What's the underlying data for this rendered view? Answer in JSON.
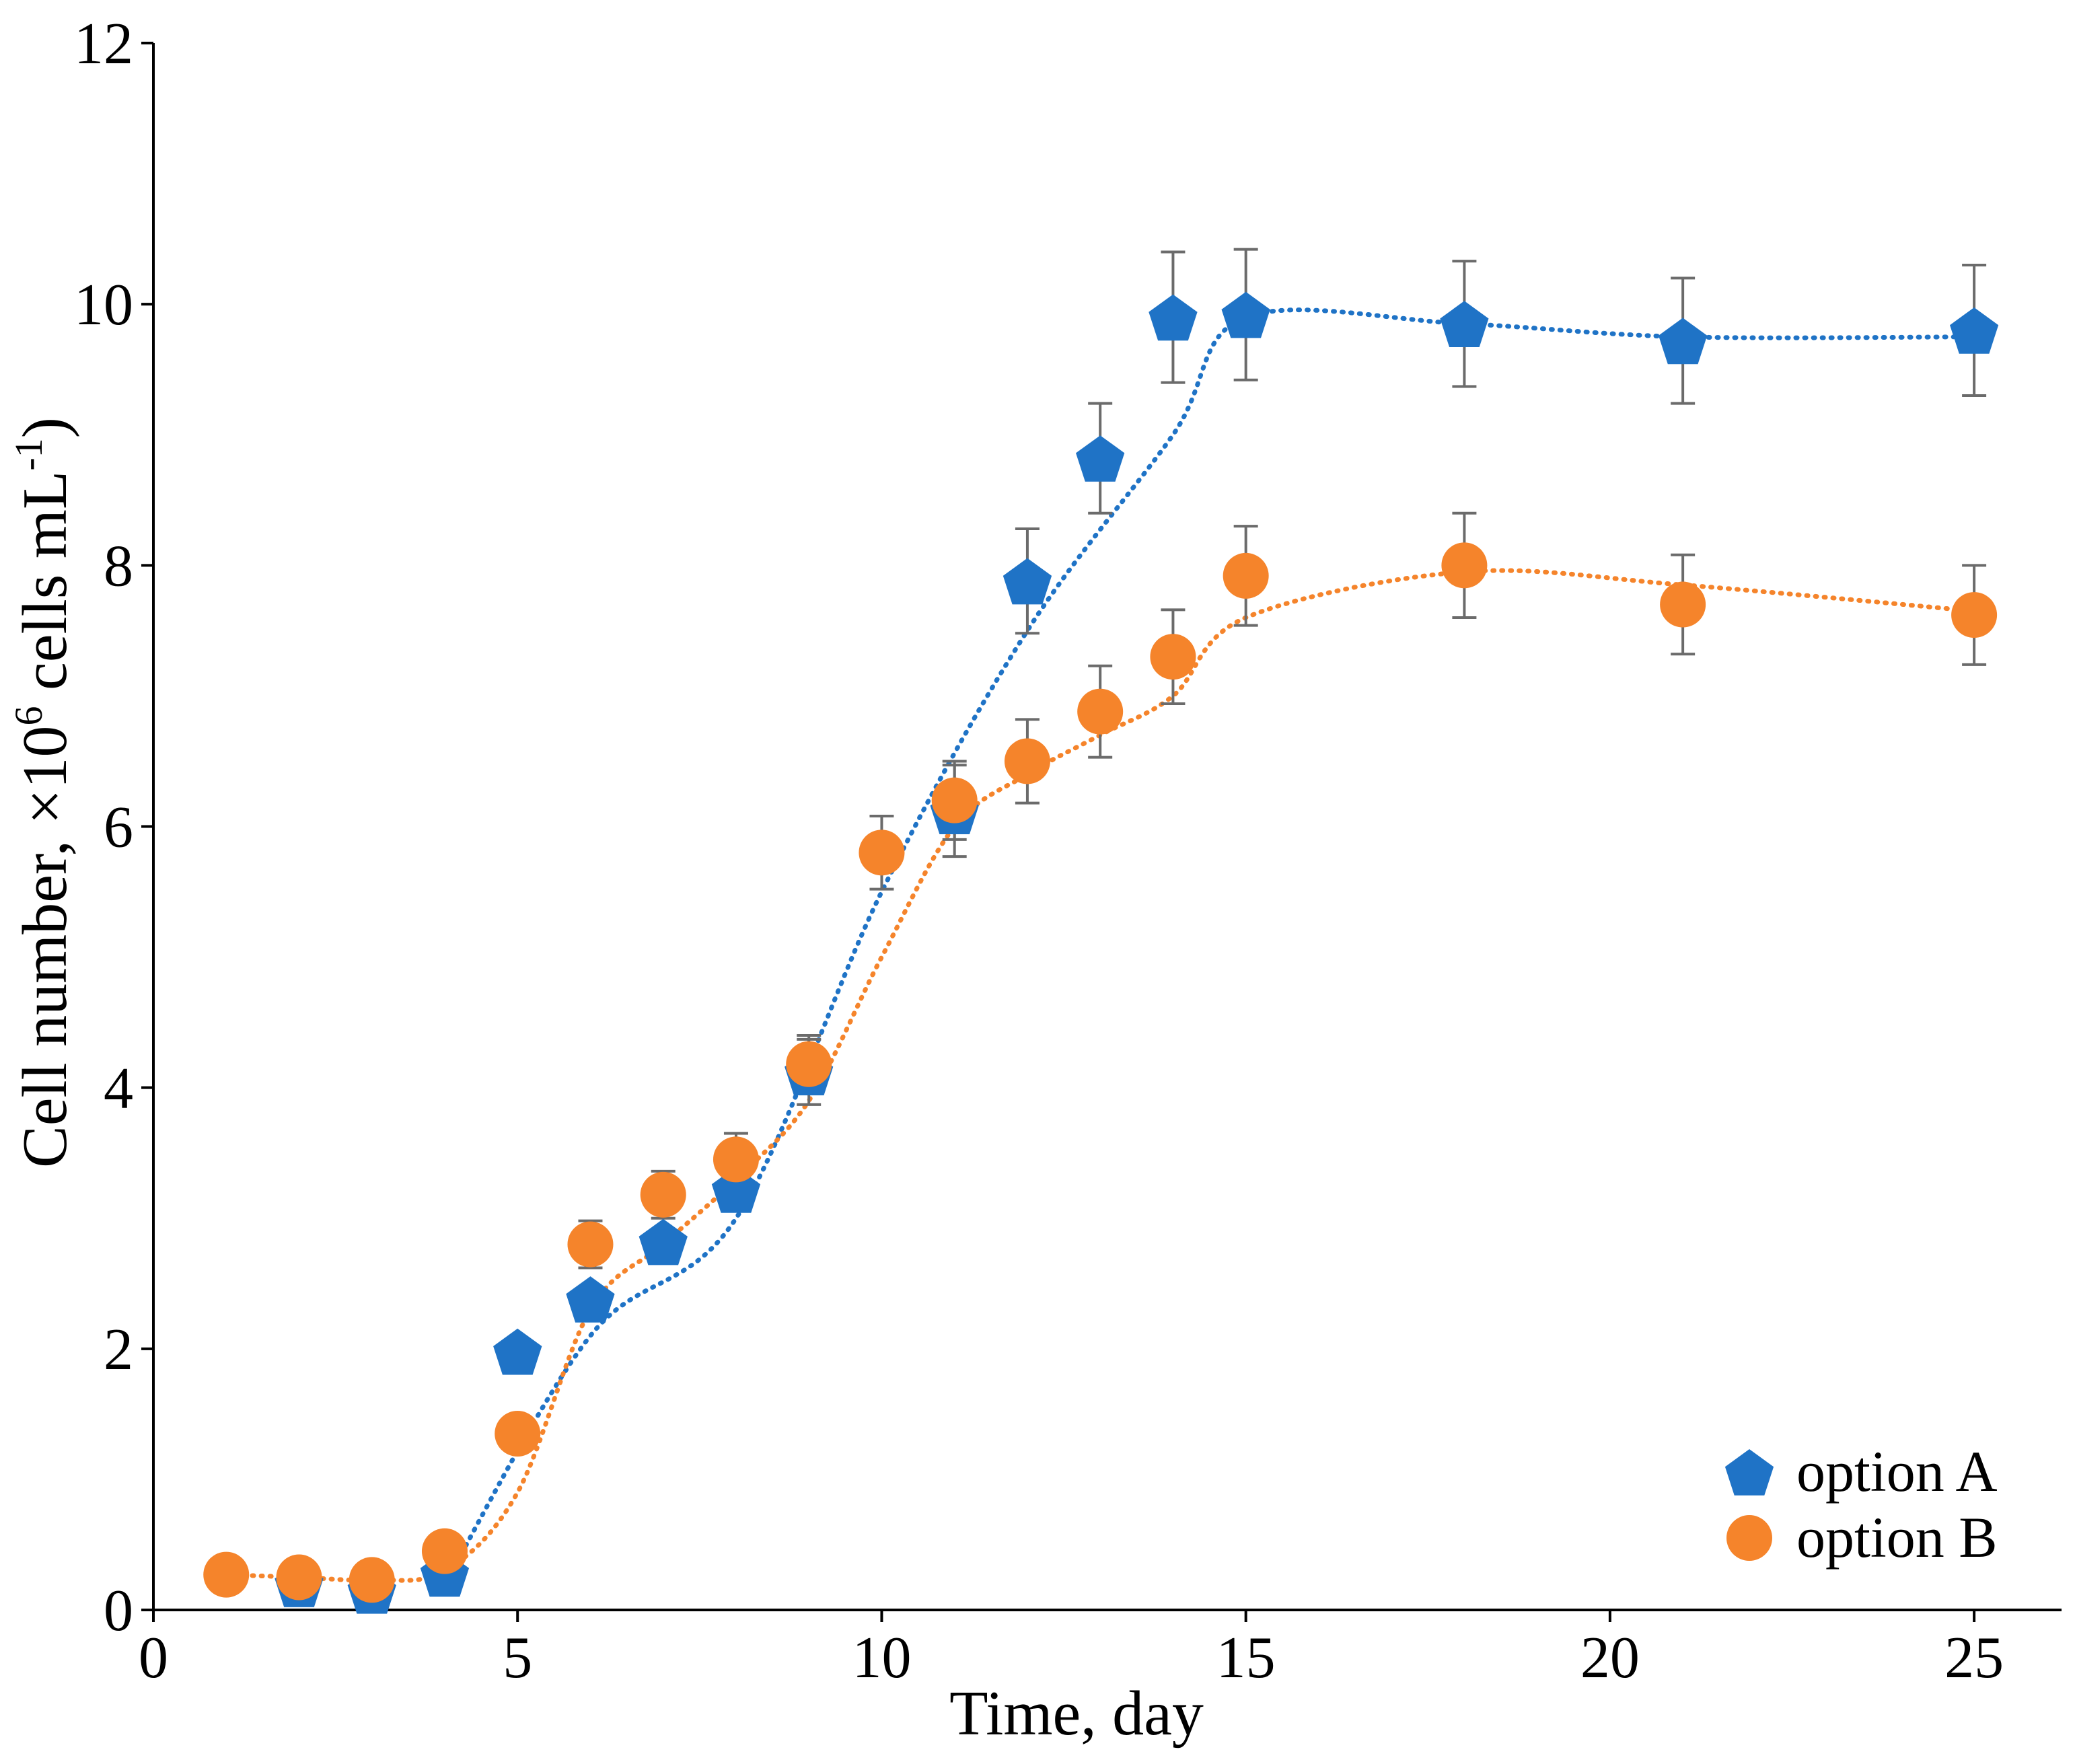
{
  "chart_data": {
    "type": "scatter",
    "title": "",
    "xlabel": "Time, day",
    "ylabel": {
      "prefix": "Cell number, ×10",
      "exp1": "6",
      "middle": " cells mL",
      "exp2": "-1",
      "suffix": ")"
    },
    "xlim": [
      0,
      26.2
    ],
    "ylim": [
      0,
      12
    ],
    "xticks": [
      0,
      5,
      10,
      15,
      20,
      25
    ],
    "yticks": [
      0,
      2,
      4,
      6,
      8,
      10,
      12
    ],
    "legend_position": "bottom-right",
    "series": [
      {
        "name": "option A",
        "marker": "pentagon",
        "color": "#1f73c6",
        "x": [
          2,
          3,
          4,
          5,
          6,
          7,
          8,
          9,
          11,
          12,
          13,
          14,
          15,
          18,
          21,
          25
        ],
        "y": [
          0.2,
          0.15,
          0.28,
          1.98,
          2.38,
          2.82,
          3.22,
          4.12,
          6.12,
          7.88,
          8.82,
          9.9,
          9.92,
          9.85,
          9.72,
          9.8
        ],
        "err": [
          0.05,
          0.05,
          0.05,
          0,
          0,
          0.05,
          0.05,
          0.25,
          0.35,
          0.4,
          0.42,
          0.5,
          0.5,
          0.48,
          0.48,
          0.5
        ],
        "trend_x": [
          4,
          6,
          8,
          10,
          12,
          14,
          15,
          18,
          21,
          25
        ],
        "trend_y": [
          0.2,
          2.1,
          3.0,
          5.5,
          7.5,
          9.0,
          9.9,
          9.85,
          9.75,
          9.75
        ]
      },
      {
        "name": "option B",
        "marker": "circle",
        "color": "#f5842b",
        "x": [
          1,
          2,
          3,
          4,
          5,
          6,
          7,
          8,
          9,
          10,
          11,
          12,
          13,
          14,
          15,
          18,
          21,
          25
        ],
        "y": [
          0.27,
          0.25,
          0.23,
          0.45,
          1.35,
          2.8,
          3.18,
          3.45,
          4.18,
          5.8,
          6.2,
          6.5,
          6.88,
          7.3,
          7.92,
          8.0,
          7.7,
          7.62
        ],
        "err": [
          0.05,
          0.05,
          0.05,
          0.05,
          0,
          0.18,
          0.18,
          0.2,
          0.22,
          0.28,
          0.3,
          0.32,
          0.35,
          0.36,
          0.38,
          0.4,
          0.38,
          0.38
        ],
        "trend_x": [
          1,
          2,
          3,
          4,
          5,
          6,
          7,
          8,
          9,
          10,
          11,
          12,
          13,
          14,
          15,
          18,
          21,
          25
        ],
        "trend_y": [
          0.27,
          0.25,
          0.23,
          0.3,
          0.9,
          2.3,
          2.8,
          3.3,
          3.9,
          5.0,
          6.0,
          6.4,
          6.7,
          7.0,
          7.6,
          7.95,
          7.85,
          7.65
        ]
      }
    ]
  }
}
